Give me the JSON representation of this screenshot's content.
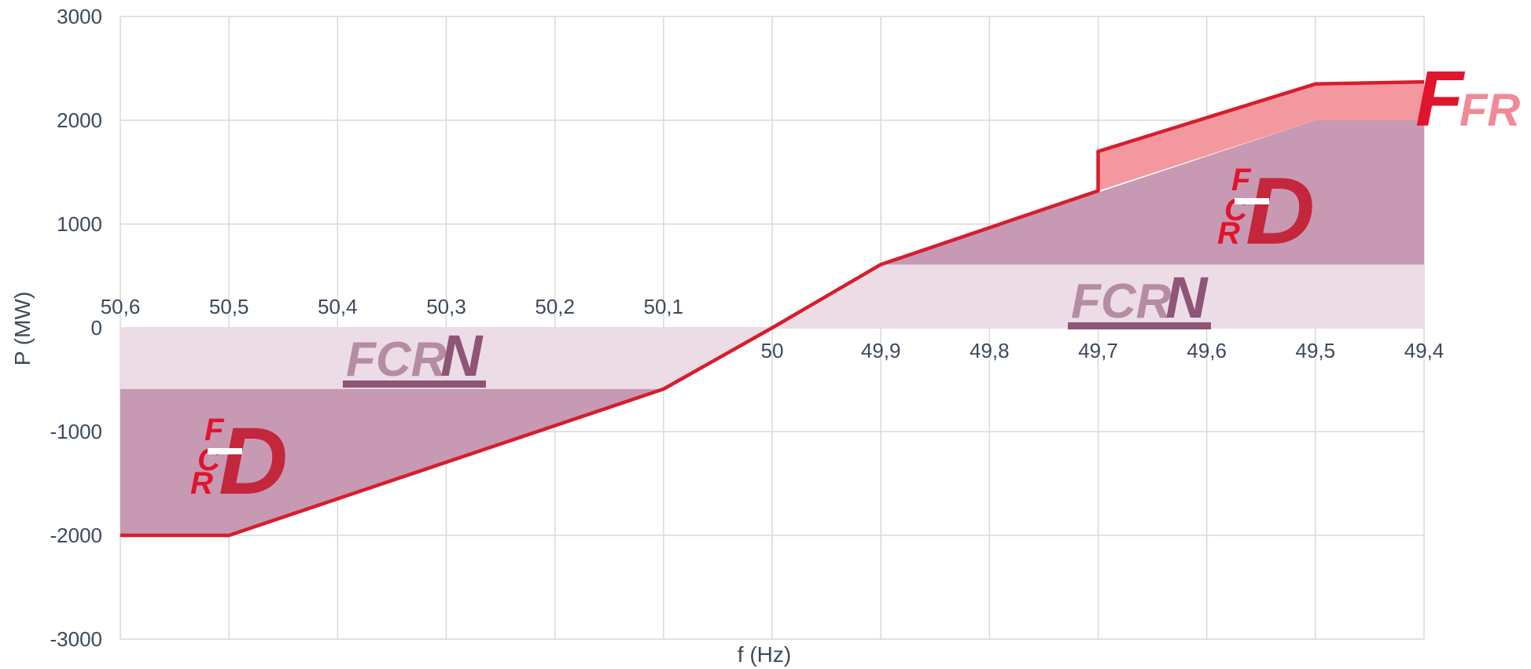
{
  "chart_data": {
    "type": "area",
    "xlabel": "f (Hz)",
    "ylabel": "P (MW)",
    "x_reversed": true,
    "xlim": [
      50.6,
      49.4
    ],
    "ylim": [
      -3000,
      3000
    ],
    "grid": true,
    "x_ticks": [
      50.6,
      50.5,
      50.4,
      50.3,
      50.2,
      50.1,
      50.0,
      49.9,
      49.8,
      49.7,
      49.6,
      49.5,
      49.4
    ],
    "x_tick_labels": [
      "50,6",
      "50,5",
      "50,4",
      "50,3",
      "50,2",
      "50,1",
      "50",
      "49,9",
      "49,8",
      "49,7",
      "49,6",
      "49,5",
      "49,4"
    ],
    "y_ticks": [
      -3000,
      -2000,
      -1000,
      0,
      1000,
      2000,
      3000
    ],
    "y_tick_labels": [
      "-3000",
      "-2000",
      "-1000",
      "0",
      "1000",
      "2000",
      "3000"
    ],
    "series": [
      {
        "name": "FCR-N",
        "color": "#ecdce6",
        "regions": [
          {
            "x": [
              50.6,
              50.1,
              50.0
            ],
            "upper": [
              0,
              0,
              0
            ],
            "lower": [
              -590,
              -590,
              0
            ]
          },
          {
            "x": [
              50.0,
              49.9,
              49.4
            ],
            "upper": [
              0,
              610,
              610
            ],
            "lower": [
              0,
              0,
              0
            ]
          }
        ]
      },
      {
        "name": "FCR-D",
        "color": "#c799b3",
        "regions": [
          {
            "x": [
              50.6,
              50.5,
              50.1
            ],
            "upper": [
              -590,
              -590,
              -590
            ],
            "lower": [
              -2000,
              -2000,
              -590
            ]
          },
          {
            "x": [
              49.9,
              49.5,
              49.4
            ],
            "upper": [
              610,
              2000,
              2000
            ],
            "lower": [
              610,
              610,
              610
            ]
          }
        ]
      },
      {
        "name": "FFR",
        "color": "#f4989f",
        "regions": [
          {
            "x": [
              49.7,
              49.5,
              49.4
            ],
            "upper": [
              1700,
              2350,
              2370
            ],
            "lower": [
              1320,
              2000,
              2000
            ]
          }
        ]
      }
    ],
    "envelope_line": {
      "color": "#d71d2d",
      "x": [
        50.6,
        50.5,
        50.1,
        50.0,
        49.9,
        49.7,
        49.7,
        49.5,
        49.4
      ],
      "y": [
        -2000,
        -2000,
        -590,
        0,
        610,
        1320,
        1700,
        2350,
        2370
      ]
    },
    "logos": {
      "fcrn": {
        "main": "FCR",
        "suffix": "N",
        "color_light": "#b48ca3",
        "color_dark": "#8e5577"
      },
      "fcrd": {
        "letters": [
          "F",
          "C",
          "R"
        ],
        "suffix": "D",
        "color_red": "#e1142d",
        "color_dark": "#c4263c"
      },
      "ffr": {
        "main": "F",
        "suffix": "FR",
        "color_main": "#e1142d",
        "color_suffix": "#f08a96"
      }
    }
  }
}
